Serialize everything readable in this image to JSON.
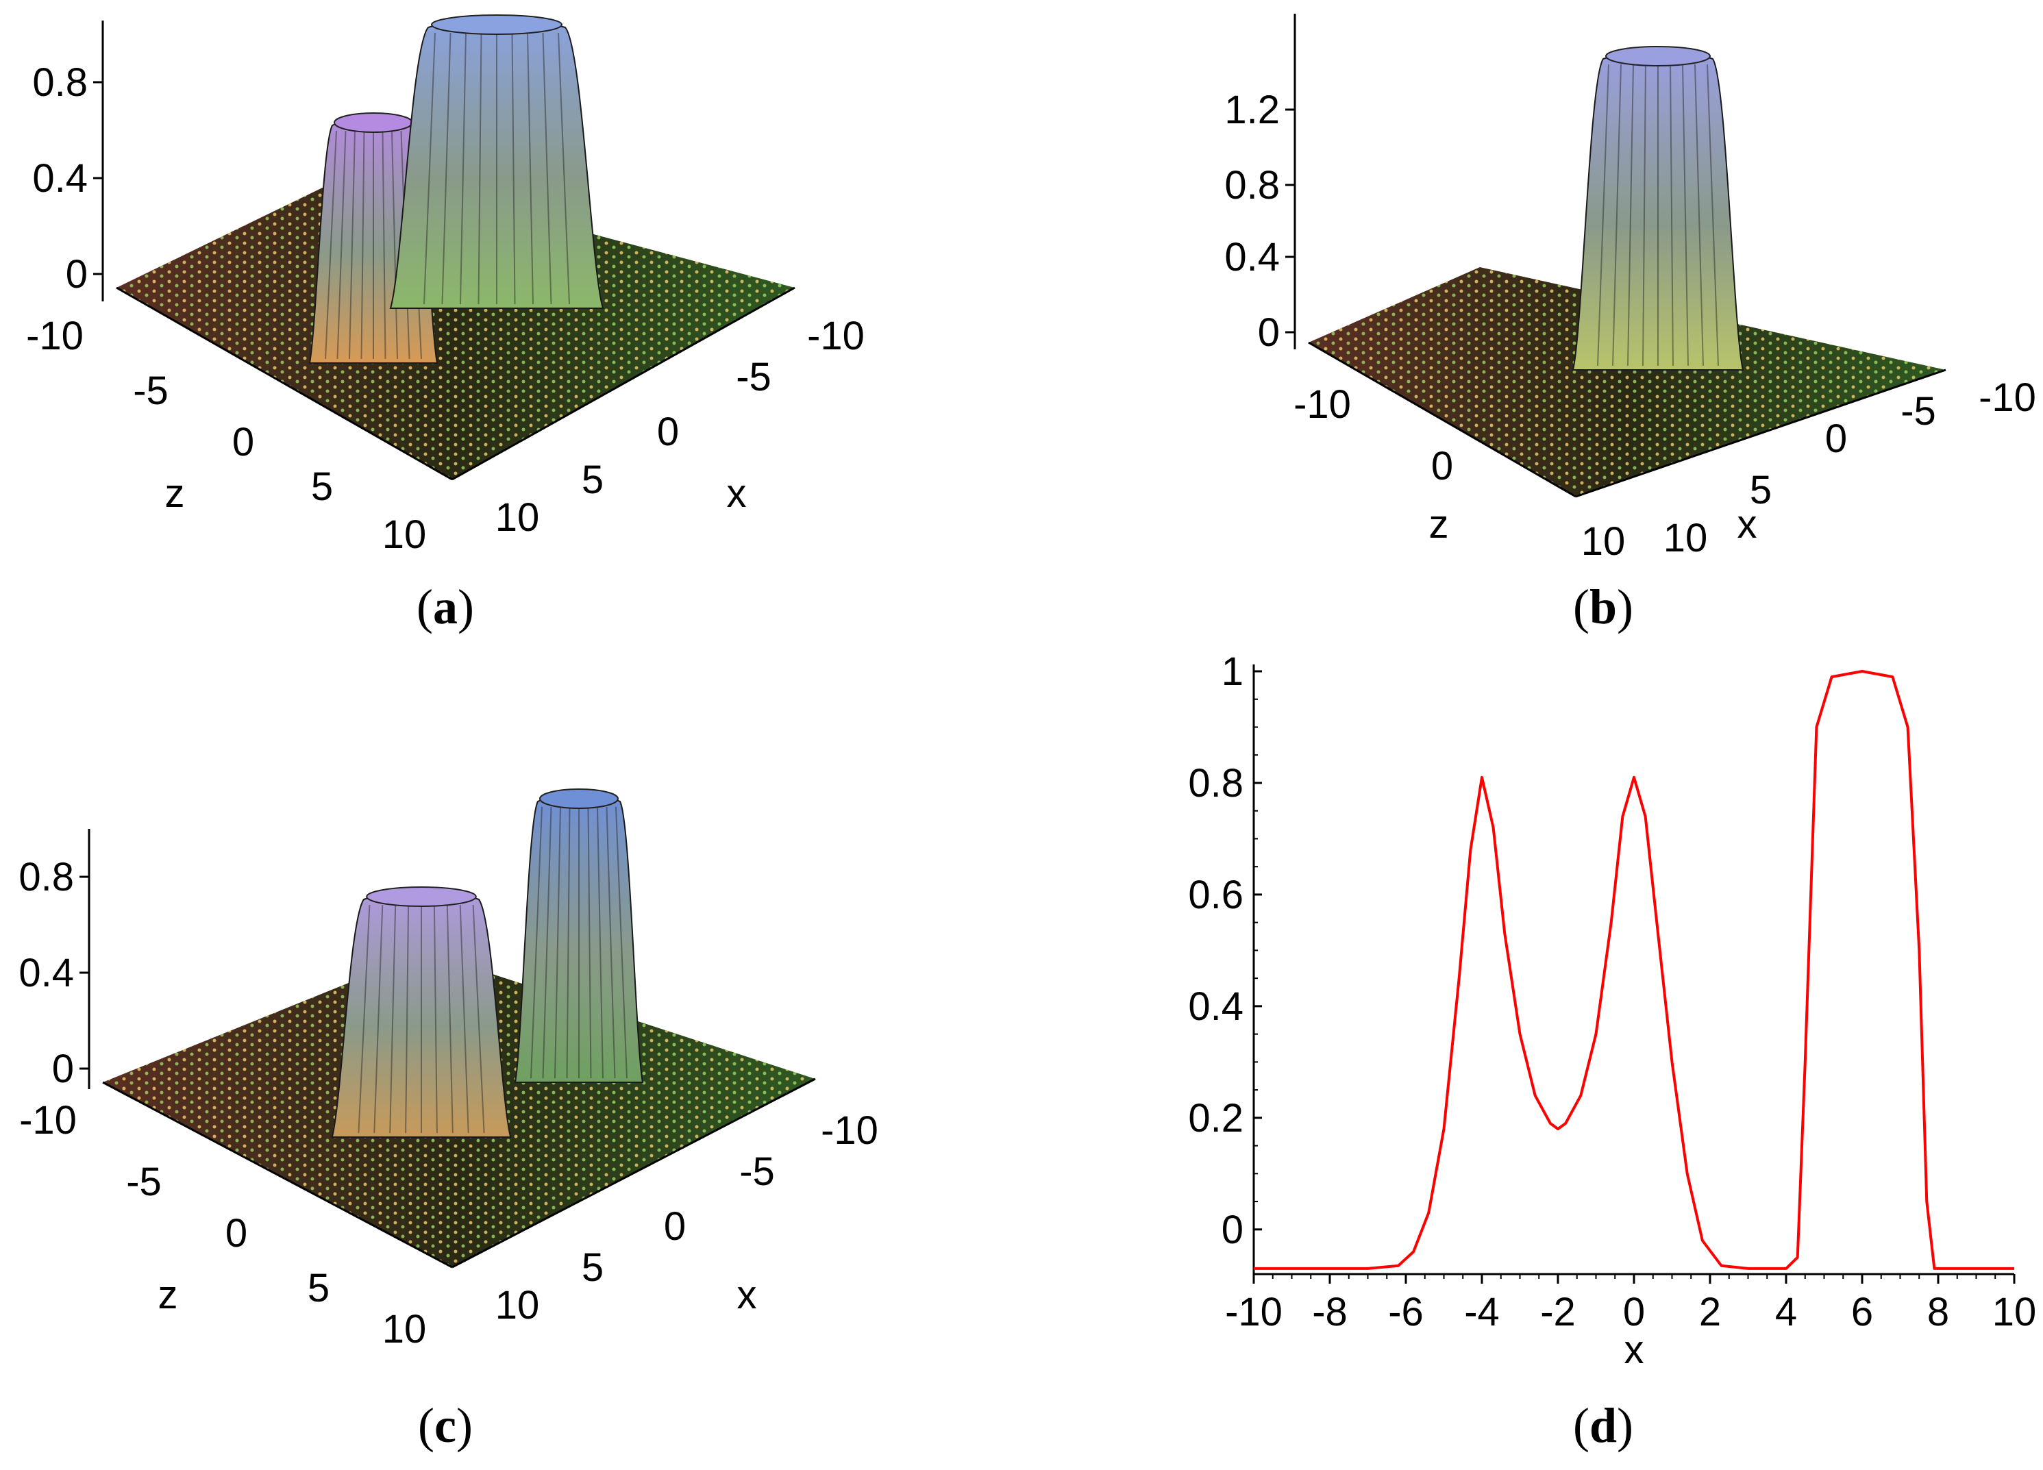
{
  "figure": {
    "panels": [
      {
        "id": "a",
        "caption_letter": "a",
        "type": "surface3d",
        "xlabel": "x",
        "zlabel": "z",
        "zticks": [
          "-10",
          "-5",
          "0",
          "5",
          "10"
        ],
        "xticks": [
          "10",
          "5",
          "0",
          "-5",
          "-10"
        ],
        "vticks": [
          "0",
          "0.4",
          "0.8"
        ],
        "peaks": [
          {
            "name": "narrow-hump",
            "height": 0.85,
            "color": "#b48be0"
          },
          {
            "name": "wide-hump",
            "height": 1.0,
            "color": "#8aa2df"
          }
        ]
      },
      {
        "id": "b",
        "caption_letter": "b",
        "type": "surface3d",
        "xlabel": "x",
        "zlabel": "z",
        "zticks": [
          "-10",
          "0",
          "10"
        ],
        "xticks": [
          "10",
          "5",
          "0",
          "-5",
          "-10"
        ],
        "vticks": [
          "0",
          "0.4",
          "0.8",
          "1.2"
        ],
        "peaks": [
          {
            "name": "single-hump",
            "height": 1.45,
            "color": "#9a9fe0"
          }
        ]
      },
      {
        "id": "c",
        "caption_letter": "c",
        "type": "surface3d",
        "xlabel": "x",
        "zlabel": "z",
        "zticks": [
          "-10",
          "-5",
          "0",
          "5",
          "10"
        ],
        "xticks": [
          "10",
          "5",
          "0",
          "-5",
          "-10"
        ],
        "vticks": [
          "0",
          "0.4",
          "0.8"
        ],
        "peaks": [
          {
            "name": "wide-hump",
            "height": 0.85,
            "color": "#b09ae0"
          },
          {
            "name": "narrow-hump",
            "height": 1.0,
            "color": "#6f8fd6"
          }
        ]
      }
    ]
  },
  "chart_data": {
    "type": "line",
    "caption_letter": "d",
    "title": "",
    "xlabel": "x",
    "ylabel": "",
    "xlim": [
      -10,
      10
    ],
    "ylim": [
      -0.08,
      1.0
    ],
    "xticks": [
      -10,
      -8,
      -6,
      -4,
      -2,
      0,
      2,
      4,
      6,
      8,
      10
    ],
    "yticks": [
      0,
      0.2,
      0.4,
      0.6,
      0.8,
      1
    ],
    "series": [
      {
        "name": "profile",
        "color": "#ff0000",
        "x": [
          -10,
          -7,
          -6.2,
          -5.8,
          -5.4,
          -5.0,
          -4.6,
          -4.3,
          -4.0,
          -3.7,
          -3.4,
          -3.0,
          -2.6,
          -2.2,
          -2.0,
          -1.8,
          -1.4,
          -1.0,
          -0.6,
          -0.3,
          0.0,
          0.3,
          0.6,
          1.0,
          1.4,
          1.8,
          2.3,
          3.0,
          4.0,
          4.3,
          4.5,
          4.8,
          5.2,
          6.0,
          6.8,
          7.2,
          7.5,
          7.7,
          7.9,
          8.5,
          10
        ],
        "y": [
          -0.07,
          -0.07,
          -0.065,
          -0.04,
          0.03,
          0.18,
          0.45,
          0.68,
          0.81,
          0.72,
          0.53,
          0.35,
          0.24,
          0.19,
          0.18,
          0.19,
          0.24,
          0.35,
          0.55,
          0.74,
          0.81,
          0.74,
          0.55,
          0.3,
          0.1,
          -0.02,
          -0.065,
          -0.07,
          -0.07,
          -0.05,
          0.3,
          0.9,
          0.99,
          1.0,
          0.99,
          0.9,
          0.5,
          0.05,
          -0.07,
          -0.07,
          -0.07
        ]
      }
    ]
  }
}
